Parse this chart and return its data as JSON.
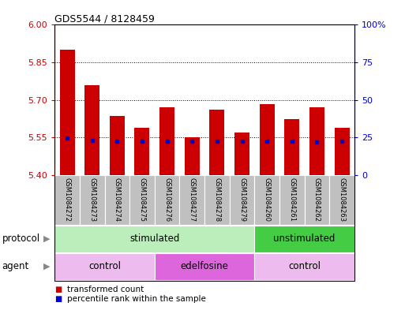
{
  "title": "GDS5544 / 8128459",
  "samples": [
    "GSM1084272",
    "GSM1084273",
    "GSM1084274",
    "GSM1084275",
    "GSM1084276",
    "GSM1084277",
    "GSM1084278",
    "GSM1084279",
    "GSM1084260",
    "GSM1084261",
    "GSM1084262",
    "GSM1084263"
  ],
  "transformed_counts": [
    5.9,
    5.76,
    5.635,
    5.59,
    5.67,
    5.55,
    5.66,
    5.57,
    5.685,
    5.625,
    5.67,
    5.59
  ],
  "percentile_values": [
    5.548,
    5.54,
    5.535,
    5.535,
    5.537,
    5.535,
    5.537,
    5.535,
    5.535,
    5.535,
    5.532,
    5.535
  ],
  "ylim_left": [
    5.4,
    6.0
  ],
  "ylim_right": [
    0,
    100
  ],
  "yticks_left": [
    5.4,
    5.55,
    5.7,
    5.85,
    6.0
  ],
  "yticks_right": [
    0,
    25,
    50,
    75,
    100
  ],
  "grid_values": [
    5.55,
    5.7,
    5.85
  ],
  "bar_color": "#cc0000",
  "blue_color": "#0000cc",
  "bar_width": 0.6,
  "protocol_groups": [
    {
      "label": "stimulated",
      "start": 0,
      "end": 8,
      "color": "#bbeebb"
    },
    {
      "label": "unstimulated",
      "start": 8,
      "end": 12,
      "color": "#44cc44"
    }
  ],
  "agent_groups": [
    {
      "label": "control",
      "start": 0,
      "end": 4,
      "color": "#eebbee"
    },
    {
      "label": "edelfosine",
      "start": 4,
      "end": 8,
      "color": "#dd66dd"
    },
    {
      "label": "control",
      "start": 8,
      "end": 12,
      "color": "#eebbee"
    }
  ],
  "legend_items": [
    {
      "label": "transformed count",
      "color": "#cc0000"
    },
    {
      "label": "percentile rank within the sample",
      "color": "#0000cc"
    }
  ],
  "protocol_label": "protocol",
  "agent_label": "agent",
  "left_axis_color": "#cc0000",
  "right_axis_color": "#0000cc",
  "tick_bg_color": "#c0c0c0"
}
